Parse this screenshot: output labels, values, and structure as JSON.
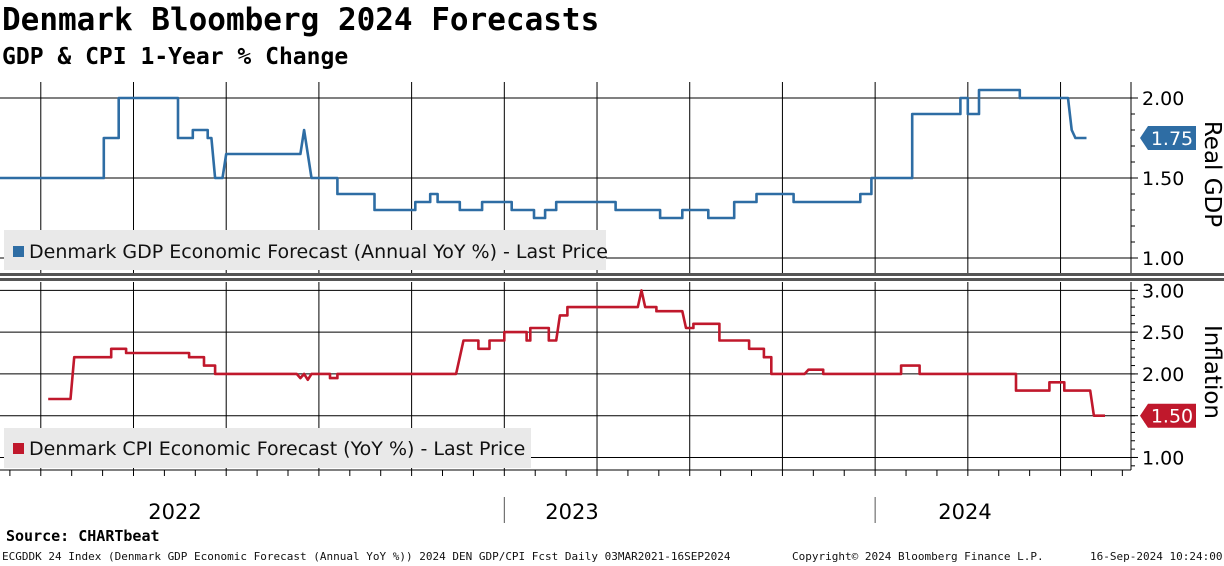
{
  "header": {
    "title": "Denmark Bloomberg 2024 Forecasts",
    "subtitle": "GDP & CPI 1-Year % Change"
  },
  "footer": {
    "source": "Source:  CHARTbeat",
    "ticker_info": "ECGDDK 24 Index (Denmark GDP Economic Forecast (Annual YoY %)) 2024 DEN GDP/CPI Fcst  Daily 03MAR2021-16SEP2024",
    "copyright": "Copyright© 2024 Bloomberg Finance L.P.",
    "timestamp": "16-Sep-2024 10:24:00"
  },
  "colors": {
    "gdp": "#2e6da4",
    "cpi": "#c0182c",
    "grid": "#000000"
  },
  "chart_data": [
    {
      "type": "line",
      "name": "gdp",
      "legend": "Denmark GDP Economic Forecast (Annual YoY %) - Last Price",
      "axis_label": "Real GDP",
      "ylim": [
        0.9,
        2.1
      ],
      "yticks": [
        1.0,
        1.5,
        2.0
      ],
      "ytick_labels": [
        "1.00",
        "1.50",
        "2.00"
      ],
      "last_value_label": "1.75",
      "last_value": 1.75,
      "x_axis_years": [
        "2022",
        "2023",
        "2024"
      ],
      "points": [
        [
          2021.64,
          1.5
        ],
        [
          2021.92,
          1.5
        ],
        [
          2021.92,
          1.75
        ],
        [
          2021.96,
          1.75
        ],
        [
          2021.96,
          2.0
        ],
        [
          2022.12,
          2.0
        ],
        [
          2022.12,
          1.75
        ],
        [
          2022.16,
          1.75
        ],
        [
          2022.16,
          1.8
        ],
        [
          2022.2,
          1.8
        ],
        [
          2022.2,
          1.75
        ],
        [
          2022.21,
          1.75
        ],
        [
          2022.22,
          1.5
        ],
        [
          2022.24,
          1.5
        ],
        [
          2022.25,
          1.65
        ],
        [
          2022.45,
          1.65
        ],
        [
          2022.46,
          1.8
        ],
        [
          2022.47,
          1.65
        ],
        [
          2022.48,
          1.5
        ],
        [
          2022.55,
          1.5
        ],
        [
          2022.55,
          1.4
        ],
        [
          2022.65,
          1.4
        ],
        [
          2022.65,
          1.3
        ],
        [
          2022.76,
          1.3
        ],
        [
          2022.76,
          1.35
        ],
        [
          2022.8,
          1.35
        ],
        [
          2022.8,
          1.4
        ],
        [
          2022.82,
          1.4
        ],
        [
          2022.82,
          1.35
        ],
        [
          2022.88,
          1.35
        ],
        [
          2022.88,
          1.3
        ],
        [
          2022.94,
          1.3
        ],
        [
          2022.94,
          1.35
        ],
        [
          2023.02,
          1.35
        ],
        [
          2023.02,
          1.3
        ],
        [
          2023.08,
          1.3
        ],
        [
          2023.08,
          1.25
        ],
        [
          2023.11,
          1.25
        ],
        [
          2023.11,
          1.3
        ],
        [
          2023.14,
          1.3
        ],
        [
          2023.14,
          1.35
        ],
        [
          2023.3,
          1.35
        ],
        [
          2023.3,
          1.3
        ],
        [
          2023.42,
          1.3
        ],
        [
          2023.42,
          1.25
        ],
        [
          2023.48,
          1.25
        ],
        [
          2023.48,
          1.3
        ],
        [
          2023.55,
          1.3
        ],
        [
          2023.55,
          1.25
        ],
        [
          2023.62,
          1.25
        ],
        [
          2023.62,
          1.35
        ],
        [
          2023.68,
          1.35
        ],
        [
          2023.68,
          1.4
        ],
        [
          2023.78,
          1.4
        ],
        [
          2023.78,
          1.35
        ],
        [
          2023.96,
          1.35
        ],
        [
          2023.96,
          1.4
        ],
        [
          2023.99,
          1.4
        ],
        [
          2023.99,
          1.5
        ],
        [
          2024.1,
          1.5
        ],
        [
          2024.1,
          1.9
        ],
        [
          2024.23,
          1.9
        ],
        [
          2024.23,
          2.0
        ],
        [
          2024.25,
          2.0
        ],
        [
          2024.25,
          1.9
        ],
        [
          2024.28,
          1.9
        ],
        [
          2024.28,
          2.05
        ],
        [
          2024.39,
          2.05
        ],
        [
          2024.39,
          2.0
        ],
        [
          2024.52,
          2.0
        ],
        [
          2024.53,
          1.8
        ],
        [
          2024.54,
          1.75
        ],
        [
          2024.57,
          1.75
        ]
      ]
    },
    {
      "type": "line",
      "name": "cpi",
      "legend": "Denmark CPI Economic Forecast (YoY %) - Last Price",
      "axis_label": "Inflation",
      "ylim": [
        0.85,
        3.1
      ],
      "yticks": [
        1.0,
        1.5,
        2.0,
        2.5,
        3.0
      ],
      "ytick_labels": [
        "1.00",
        "1.50",
        "2.00",
        "2.50",
        "3.00"
      ],
      "last_value_label": "1.50",
      "last_value": 1.5,
      "points": [
        [
          2021.77,
          1.7
        ],
        [
          2021.83,
          1.7
        ],
        [
          2021.84,
          2.2
        ],
        [
          2021.94,
          2.2
        ],
        [
          2021.94,
          2.3
        ],
        [
          2021.98,
          2.3
        ],
        [
          2021.98,
          2.25
        ],
        [
          2022.15,
          2.25
        ],
        [
          2022.15,
          2.2
        ],
        [
          2022.19,
          2.2
        ],
        [
          2022.19,
          2.1
        ],
        [
          2022.22,
          2.1
        ],
        [
          2022.22,
          2.0
        ],
        [
          2022.44,
          2.0
        ],
        [
          2022.45,
          1.95
        ],
        [
          2022.46,
          2.0
        ],
        [
          2022.47,
          1.93
        ],
        [
          2022.48,
          2.0
        ],
        [
          2022.53,
          2.0
        ],
        [
          2022.53,
          1.95
        ],
        [
          2022.55,
          1.95
        ],
        [
          2022.55,
          2.0
        ],
        [
          2022.87,
          2.0
        ],
        [
          2022.88,
          2.2
        ],
        [
          2022.89,
          2.4
        ],
        [
          2022.93,
          2.4
        ],
        [
          2022.93,
          2.3
        ],
        [
          2022.96,
          2.3
        ],
        [
          2022.96,
          2.4
        ],
        [
          2023.0,
          2.4
        ],
        [
          2023.0,
          2.5
        ],
        [
          2023.06,
          2.5
        ],
        [
          2023.06,
          2.4
        ],
        [
          2023.07,
          2.4
        ],
        [
          2023.07,
          2.55
        ],
        [
          2023.12,
          2.55
        ],
        [
          2023.12,
          2.4
        ],
        [
          2023.14,
          2.4
        ],
        [
          2023.15,
          2.7
        ],
        [
          2023.17,
          2.7
        ],
        [
          2023.17,
          2.8
        ],
        [
          2023.36,
          2.8
        ],
        [
          2023.37,
          3.0
        ],
        [
          2023.38,
          2.8
        ],
        [
          2023.41,
          2.8
        ],
        [
          2023.41,
          2.75
        ],
        [
          2023.48,
          2.75
        ],
        [
          2023.49,
          2.55
        ],
        [
          2023.51,
          2.55
        ],
        [
          2023.51,
          2.6
        ],
        [
          2023.58,
          2.6
        ],
        [
          2023.58,
          2.4
        ],
        [
          2023.66,
          2.4
        ],
        [
          2023.66,
          2.3
        ],
        [
          2023.7,
          2.3
        ],
        [
          2023.7,
          2.2
        ],
        [
          2023.72,
          2.2
        ],
        [
          2023.72,
          2.0
        ],
        [
          2023.81,
          2.0
        ],
        [
          2023.82,
          2.05
        ],
        [
          2023.86,
          2.05
        ],
        [
          2023.86,
          2.0
        ],
        [
          2024.07,
          2.0
        ],
        [
          2024.07,
          2.1
        ],
        [
          2024.12,
          2.1
        ],
        [
          2024.12,
          2.0
        ],
        [
          2024.38,
          2.0
        ],
        [
          2024.38,
          1.8
        ],
        [
          2024.47,
          1.8
        ],
        [
          2024.47,
          1.9
        ],
        [
          2024.51,
          1.9
        ],
        [
          2024.51,
          1.8
        ],
        [
          2024.58,
          1.8
        ],
        [
          2024.59,
          1.5
        ],
        [
          2024.62,
          1.5
        ]
      ]
    }
  ]
}
